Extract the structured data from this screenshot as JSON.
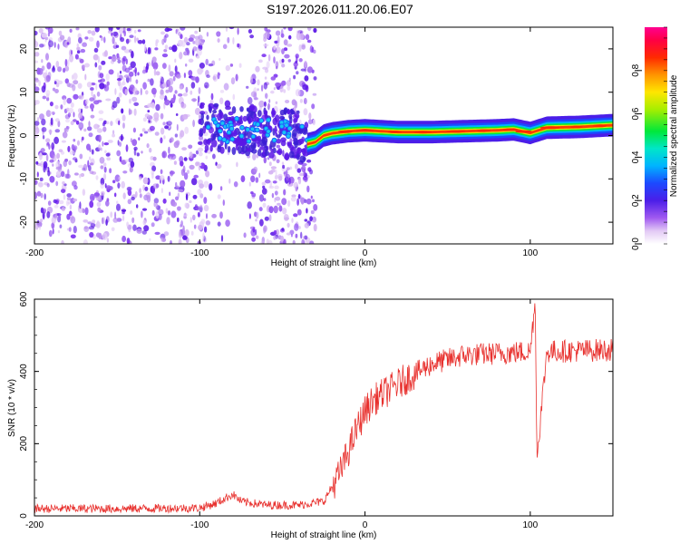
{
  "title": "S197.2026.011.20.06.E07",
  "chart_data": [
    {
      "type": "heatmap",
      "name": "spectrogram",
      "xlabel": "Height of straight line (km)",
      "ylabel": "Frequency (Hz)",
      "xlim": [
        -200,
        150
      ],
      "ylim": [
        -25,
        25
      ],
      "xticks": [
        -200,
        -100,
        0,
        100
      ],
      "yticks": [
        20,
        10,
        0,
        -10,
        -20
      ],
      "noise_region_km": [
        -200,
        -30
      ],
      "signal_band": {
        "x_start": -35,
        "x_end": 150,
        "center_hz": [
          [
            -35,
            -2
          ],
          [
            -30,
            -1.5
          ],
          [
            -25,
            0
          ],
          [
            -20,
            0.5
          ],
          [
            -10,
            1
          ],
          [
            0,
            1.2
          ],
          [
            10,
            1.0
          ],
          [
            20,
            0.8
          ],
          [
            40,
            0.8
          ],
          [
            60,
            1.0
          ],
          [
            80,
            1.2
          ],
          [
            90,
            1.4
          ],
          [
            100,
            0.6
          ],
          [
            110,
            1.8
          ],
          [
            130,
            2.0
          ],
          [
            150,
            2.4
          ]
        ]
      },
      "colorbar": {
        "label": "Normalized spectral amplitude",
        "ticks": [
          0.0,
          0.2,
          0.4,
          0.6,
          0.8
        ],
        "range": [
          0,
          1
        ]
      }
    },
    {
      "type": "line",
      "name": "snr",
      "xlabel": "Height of straight line (km)",
      "ylabel": "SNR (10 * v/v)",
      "xlim": [
        -200,
        150
      ],
      "ylim": [
        0,
        600
      ],
      "xticks": [
        -200,
        -100,
        0,
        100
      ],
      "yticks": [
        0,
        200,
        400,
        600
      ],
      "color": "#e8312e",
      "envelope": [
        [
          -200,
          20
        ],
        [
          -150,
          20
        ],
        [
          -100,
          22
        ],
        [
          -90,
          35
        ],
        [
          -80,
          60
        ],
        [
          -75,
          40
        ],
        [
          -60,
          30
        ],
        [
          -40,
          30
        ],
        [
          -25,
          40
        ],
        [
          -15,
          120
        ],
        [
          -5,
          240
        ],
        [
          0,
          290
        ],
        [
          5,
          320
        ],
        [
          15,
          350
        ],
        [
          25,
          380
        ],
        [
          40,
          420
        ],
        [
          60,
          445
        ],
        [
          80,
          450
        ],
        [
          100,
          455
        ],
        [
          103,
          600
        ],
        [
          104,
          160
        ],
        [
          110,
          455
        ],
        [
          150,
          460
        ]
      ]
    }
  ]
}
